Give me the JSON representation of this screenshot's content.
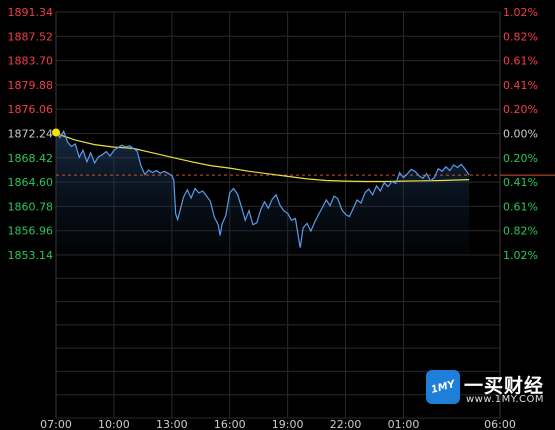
{
  "chart_data": {
    "type": "line",
    "ylim": [
      1853.14,
      1891.34
    ],
    "y_ticks_left": [
      "1891.34",
      "1887.52",
      "1883.70",
      "1879.88",
      "1876.06",
      "1872.24",
      "1868.42",
      "1864.60",
      "1860.78",
      "1856.96",
      "1853.14"
    ],
    "y_ticks_right": [
      "1.02%",
      "0.82%",
      "0.61%",
      "0.41%",
      "0.20%",
      "0.00%",
      "0.20%",
      "0.41%",
      "0.61%",
      "0.82%",
      "1.02%"
    ],
    "x_ticks": [
      "07:00",
      "10:00",
      "13:00",
      "16:00",
      "19:00",
      "22:00",
      "01:00",
      "06:00"
    ],
    "reference_price": 1872.24,
    "last_price": 1865.7,
    "series": [
      {
        "values": [
          [
            0,
            1872.4
          ],
          [
            0.2,
            1871.6
          ],
          [
            0.4,
            1872.6
          ],
          [
            0.6,
            1870.9
          ],
          [
            0.8,
            1870.2
          ],
          [
            1.0,
            1870.6
          ],
          [
            1.2,
            1868.5
          ],
          [
            1.4,
            1869.6
          ],
          [
            1.6,
            1867.8
          ],
          [
            1.8,
            1869.2
          ],
          [
            2.0,
            1867.6
          ],
          [
            2.2,
            1868.6
          ],
          [
            2.4,
            1868.9
          ],
          [
            2.6,
            1869.4
          ],
          [
            2.8,
            1868.7
          ],
          [
            3.0,
            1869.6
          ],
          [
            3.2,
            1870.0
          ],
          [
            3.4,
            1870.4
          ],
          [
            3.6,
            1870.1
          ],
          [
            3.8,
            1870.3
          ],
          [
            4.0,
            1869.9
          ],
          [
            4.2,
            1869.5
          ],
          [
            4.4,
            1867.2
          ],
          [
            4.6,
            1865.8
          ],
          [
            4.8,
            1866.5
          ],
          [
            5.0,
            1866.1
          ],
          [
            5.2,
            1866.4
          ],
          [
            5.4,
            1866.0
          ],
          [
            5.6,
            1866.3
          ],
          [
            5.8,
            1866.0
          ],
          [
            6.0,
            1865.6
          ],
          [
            6.1,
            1864.9
          ],
          [
            6.2,
            1859.6
          ],
          [
            6.3,
            1858.7
          ],
          [
            6.45,
            1860.4
          ],
          [
            6.6,
            1862.2
          ],
          [
            6.8,
            1863.4
          ],
          [
            7.0,
            1862.1
          ],
          [
            7.2,
            1863.6
          ],
          [
            7.4,
            1862.9
          ],
          [
            7.6,
            1863.2
          ],
          [
            7.8,
            1862.4
          ],
          [
            8.0,
            1861.6
          ],
          [
            8.2,
            1859.1
          ],
          [
            8.4,
            1857.9
          ],
          [
            8.5,
            1856.2
          ],
          [
            8.6,
            1858.0
          ],
          [
            8.8,
            1859.4
          ],
          [
            9.0,
            1862.9
          ],
          [
            9.2,
            1863.6
          ],
          [
            9.4,
            1862.7
          ],
          [
            9.6,
            1860.8
          ],
          [
            9.8,
            1858.6
          ],
          [
            10.0,
            1860.1
          ],
          [
            10.2,
            1857.9
          ],
          [
            10.4,
            1858.2
          ],
          [
            10.6,
            1860.2
          ],
          [
            10.8,
            1861.5
          ],
          [
            11.0,
            1860.5
          ],
          [
            11.2,
            1861.9
          ],
          [
            11.4,
            1862.6
          ],
          [
            11.6,
            1861.0
          ],
          [
            11.8,
            1860.1
          ],
          [
            12.0,
            1859.7
          ],
          [
            12.2,
            1858.6
          ],
          [
            12.4,
            1858.9
          ],
          [
            12.6,
            1855.2
          ],
          [
            12.65,
            1854.3
          ],
          [
            12.8,
            1857.4
          ],
          [
            13.0,
            1858.1
          ],
          [
            13.2,
            1856.9
          ],
          [
            13.4,
            1858.3
          ],
          [
            13.6,
            1859.5
          ],
          [
            13.8,
            1860.6
          ],
          [
            14.0,
            1861.8
          ],
          [
            14.2,
            1860.9
          ],
          [
            14.4,
            1862.4
          ],
          [
            14.6,
            1862.0
          ],
          [
            14.8,
            1860.3
          ],
          [
            15.0,
            1859.5
          ],
          [
            15.2,
            1859.2
          ],
          [
            15.4,
            1860.5
          ],
          [
            15.6,
            1861.8
          ],
          [
            15.8,
            1861.3
          ],
          [
            16.0,
            1862.9
          ],
          [
            16.2,
            1863.5
          ],
          [
            16.4,
            1862.6
          ],
          [
            16.6,
            1864.0
          ],
          [
            16.8,
            1863.2
          ],
          [
            17.0,
            1864.5
          ],
          [
            17.2,
            1863.9
          ],
          [
            17.4,
            1864.7
          ],
          [
            17.6,
            1864.4
          ],
          [
            17.8,
            1866.1
          ],
          [
            18.0,
            1865.3
          ],
          [
            18.2,
            1865.9
          ],
          [
            18.4,
            1866.6
          ],
          [
            18.6,
            1866.3
          ],
          [
            18.8,
            1865.6
          ],
          [
            19.0,
            1865.2
          ],
          [
            19.2,
            1865.9
          ],
          [
            19.4,
            1864.8
          ],
          [
            19.6,
            1865.3
          ],
          [
            19.8,
            1866.7
          ],
          [
            20.0,
            1866.3
          ],
          [
            20.2,
            1867.0
          ],
          [
            20.4,
            1866.4
          ],
          [
            20.6,
            1867.3
          ],
          [
            20.8,
            1866.9
          ],
          [
            21.0,
            1867.4
          ],
          [
            21.2,
            1866.6
          ],
          [
            21.4,
            1865.7
          ]
        ]
      },
      {
        "values": [
          [
            0,
            1872.24
          ],
          [
            1,
            1871.2
          ],
          [
            2,
            1870.5
          ],
          [
            3,
            1870.1
          ],
          [
            4,
            1869.9
          ],
          [
            5,
            1869.2
          ],
          [
            6,
            1868.5
          ],
          [
            7,
            1867.8
          ],
          [
            8,
            1867.2
          ],
          [
            9,
            1866.8
          ],
          [
            10,
            1866.3
          ],
          [
            11,
            1865.9
          ],
          [
            12,
            1865.5
          ],
          [
            13,
            1865.1
          ],
          [
            14,
            1864.85
          ],
          [
            15,
            1864.75
          ],
          [
            16,
            1864.7
          ],
          [
            17,
            1864.7
          ],
          [
            18,
            1864.75
          ],
          [
            19,
            1864.8
          ],
          [
            20,
            1864.85
          ],
          [
            21,
            1864.95
          ],
          [
            21.4,
            1865.0
          ]
        ]
      }
    ]
  },
  "logo": {
    "name": "一买财经",
    "domain": "www.1MY.COM",
    "badge": "1MY"
  },
  "colors": {
    "price_line": "#5b9bea",
    "avg_line": "#e8e040",
    "up": "#f23d4a",
    "down": "#27c85a",
    "neutral": "#cccccc",
    "grid": "#2a2a2a",
    "dashed_line": "#d0522a"
  }
}
